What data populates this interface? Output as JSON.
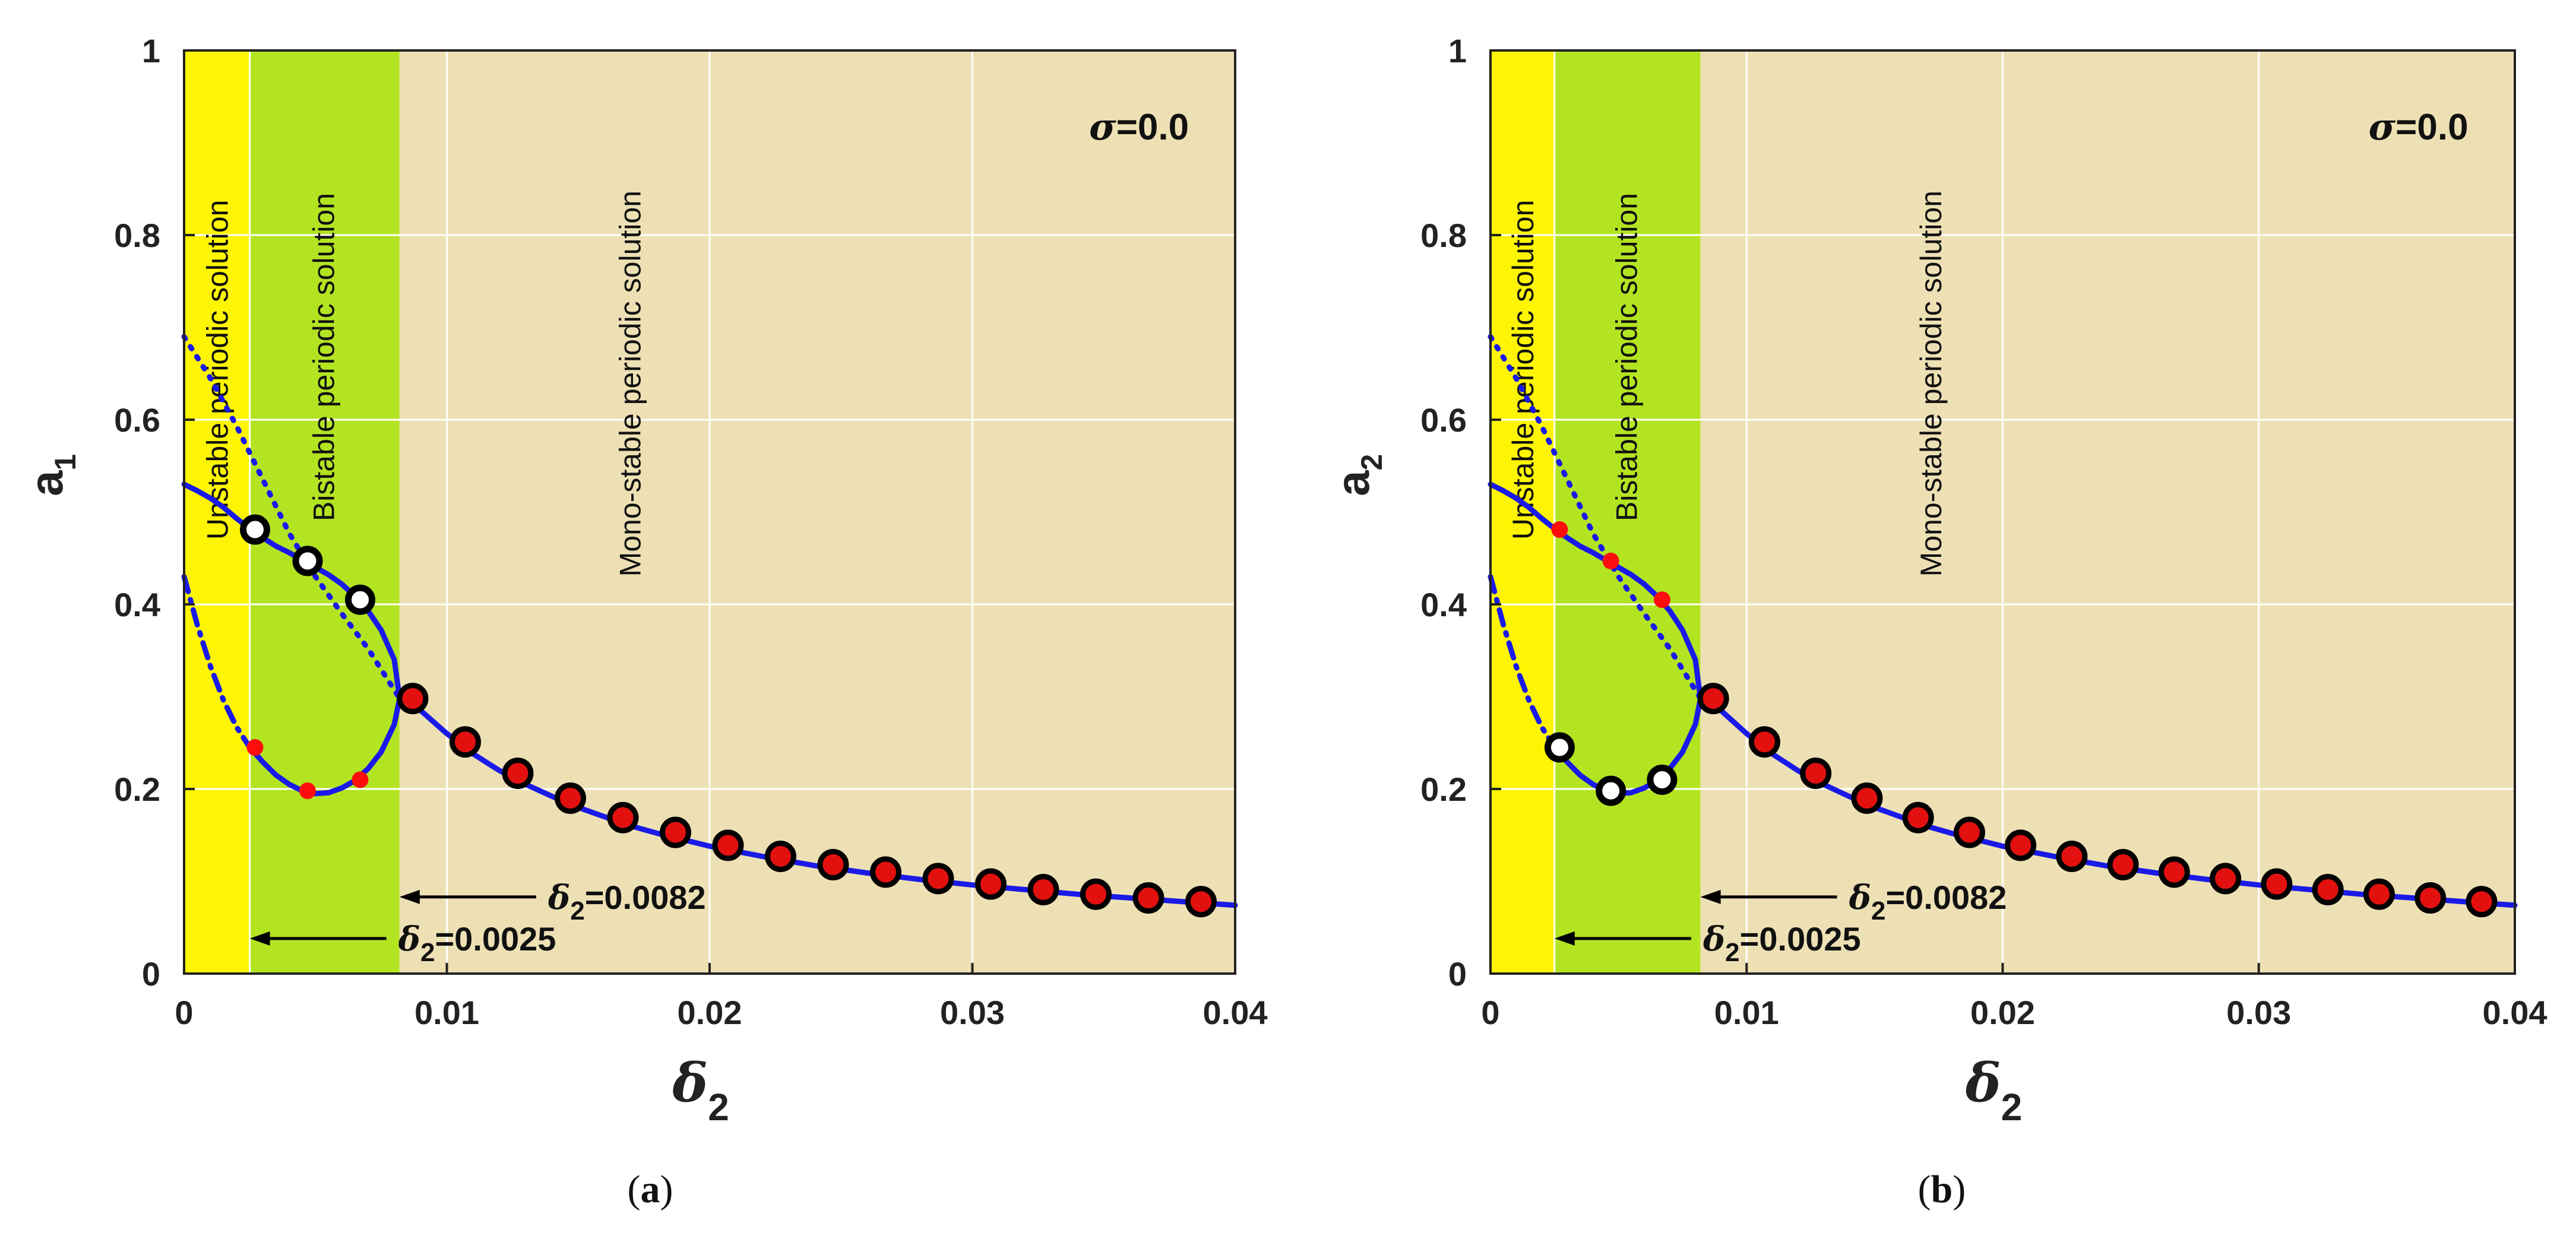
{
  "chart_data": [
    {
      "type": "line",
      "panel_label": "(a)",
      "ylabel": "a",
      "ylabel_sub": "1",
      "xlabel": "δ",
      "xlabel_sub": "2",
      "xlim": [
        0,
        0.04
      ],
      "ylim": [
        0,
        1
      ],
      "x_ticks": [
        "0",
        "0.01",
        "0.02",
        "0.03",
        "0.04"
      ],
      "y_ticks": [
        "0",
        "0.2",
        "0.4",
        "0.6",
        "0.8",
        "1"
      ],
      "grid": true,
      "sigma_text": "σ=0.0",
      "regions": [
        {
          "name": "Unstable periodic solution",
          "x_range": [
            0,
            0.0025
          ],
          "color": "#fdf503"
        },
        {
          "name": "Bistable periodic solution",
          "x_range": [
            0.0025,
            0.0082
          ],
          "color": "#b3e422"
        },
        {
          "name": "Mono-stable periodic solution",
          "x_range": [
            0.0082,
            0.04
          ],
          "color": "#ede0b4"
        }
      ],
      "annotations": [
        {
          "symbol": "δ",
          "sub": "2",
          "text": "=0.0082",
          "x": 0.0082,
          "y": 0.083
        },
        {
          "symbol": "δ",
          "sub": "2",
          "text": "=0.0025",
          "x": 0.0025,
          "y": 0.038
        }
      ],
      "series": [
        {
          "name": "stable upper branch",
          "style": "solid",
          "x": [
            0,
            0.0005,
            0.001,
            0.0015,
            0.002,
            0.0025,
            0.003,
            0.0035,
            0.004,
            0.0045,
            0.005,
            0.0055,
            0.006,
            0.0065,
            0.007,
            0.0075,
            0.008,
            0.0082
          ],
          "y": [
            0.53,
            0.523,
            0.515,
            0.505,
            0.493,
            0.482,
            0.472,
            0.463,
            0.456,
            0.448,
            0.44,
            0.432,
            0.422,
            0.409,
            0.393,
            0.372,
            0.34,
            0.298
          ]
        },
        {
          "name": "stable lower branch",
          "style": "solid",
          "x": [
            0.0025,
            0.003,
            0.0035,
            0.004,
            0.0045,
            0.005,
            0.0055,
            0.006,
            0.0065,
            0.007,
            0.0075,
            0.008,
            0.0082
          ],
          "y": [
            0.245,
            0.229,
            0.215,
            0.205,
            0.198,
            0.195,
            0.196,
            0.201,
            0.209,
            0.222,
            0.24,
            0.27,
            0.298
          ]
        },
        {
          "name": "unstable lower branch",
          "style": "dashdot",
          "x": [
            0,
            0.0005,
            0.001,
            0.0015,
            0.002,
            0.0025
          ],
          "y": [
            0.43,
            0.378,
            0.333,
            0.296,
            0.267,
            0.245
          ]
        },
        {
          "name": "unstable middle branch",
          "style": "dotted",
          "x": [
            0,
            0.001,
            0.002,
            0.003,
            0.004,
            0.005,
            0.006,
            0.007,
            0.0082
          ],
          "y": [
            0.69,
            0.645,
            0.593,
            0.535,
            0.477,
            0.43,
            0.39,
            0.352,
            0.298
          ]
        },
        {
          "name": "mono-stable branch",
          "style": "solid",
          "x": [
            0.0082,
            0.009,
            0.01,
            0.011,
            0.012,
            0.013,
            0.014,
            0.015,
            0.016,
            0.017,
            0.018,
            0.019,
            0.02,
            0.022,
            0.024,
            0.026,
            0.028,
            0.03,
            0.032,
            0.034,
            0.036,
            0.038,
            0.04
          ],
          "y": [
            0.298,
            0.285,
            0.26,
            0.238,
            0.22,
            0.205,
            0.192,
            0.18,
            0.17,
            0.16,
            0.152,
            0.145,
            0.138,
            0.127,
            0.117,
            0.109,
            0.102,
            0.096,
            0.091,
            0.086,
            0.082,
            0.078,
            0.074
          ]
        }
      ],
      "markers": {
        "large_red": {
          "x": [
            0.0087,
            0.0107,
            0.0127,
            0.0147,
            0.0167,
            0.0187,
            0.0207,
            0.0227,
            0.0247,
            0.0267,
            0.0287,
            0.0307,
            0.0327,
            0.0347,
            0.0367,
            0.0387
          ],
          "y": [
            0.298,
            0.251,
            0.217,
            0.19,
            0.169,
            0.153,
            0.139,
            0.127,
            0.118,
            0.11,
            0.103,
            0.097,
            0.091,
            0.086,
            0.082,
            0.078
          ]
        },
        "large_white": {
          "x": [
            0.0027,
            0.0047,
            0.0067
          ],
          "y": [
            0.481,
            0.447,
            0.405
          ]
        },
        "small_red": {
          "x": [
            0.0027,
            0.0047,
            0.0067
          ],
          "y": [
            0.245,
            0.198,
            0.21
          ]
        }
      }
    },
    {
      "type": "line",
      "panel_label": "(b)",
      "ylabel": "a",
      "ylabel_sub": "2",
      "xlabel": "δ",
      "xlabel_sub": "2",
      "xlim": [
        0,
        0.04
      ],
      "ylim": [
        0,
        1
      ],
      "x_ticks": [
        "0",
        "0.01",
        "0.02",
        "0.03",
        "0.04"
      ],
      "y_ticks": [
        "0",
        "0.2",
        "0.4",
        "0.6",
        "0.8",
        "1"
      ],
      "grid": true,
      "sigma_text": "σ=0.0",
      "regions": [
        {
          "name": "Unstable periodic solution",
          "x_range": [
            0,
            0.0025
          ],
          "color": "#fdf503"
        },
        {
          "name": "Bistable periodic solution",
          "x_range": [
            0.0025,
            0.0082
          ],
          "color": "#b3e422"
        },
        {
          "name": "Mono-stable periodic solution",
          "x_range": [
            0.0082,
            0.04
          ],
          "color": "#ede0b4"
        }
      ],
      "annotations": [
        {
          "symbol": "δ",
          "sub": "2",
          "text": "=0.0082",
          "x": 0.0082,
          "y": 0.083
        },
        {
          "symbol": "δ",
          "sub": "2",
          "text": "=0.0025",
          "x": 0.0025,
          "y": 0.038
        }
      ],
      "series": [
        {
          "name": "upper branch",
          "style": "solid",
          "x": [
            0,
            0.0005,
            0.001,
            0.0015,
            0.002,
            0.0025,
            0.003,
            0.0035,
            0.004,
            0.0045,
            0.005,
            0.0055,
            0.006,
            0.0065,
            0.007,
            0.0075,
            0.008,
            0.0082
          ],
          "y": [
            0.53,
            0.523,
            0.515,
            0.505,
            0.493,
            0.482,
            0.472,
            0.463,
            0.456,
            0.448,
            0.44,
            0.432,
            0.422,
            0.409,
            0.393,
            0.372,
            0.34,
            0.298
          ]
        },
        {
          "name": "lower branch",
          "style": "solid",
          "x": [
            0.0025,
            0.003,
            0.0035,
            0.004,
            0.0045,
            0.005,
            0.0055,
            0.006,
            0.0065,
            0.007,
            0.0075,
            0.008,
            0.0082
          ],
          "y": [
            0.245,
            0.229,
            0.215,
            0.205,
            0.198,
            0.195,
            0.196,
            0.201,
            0.209,
            0.222,
            0.24,
            0.27,
            0.298
          ]
        },
        {
          "name": "unstable lower branch",
          "style": "dashdot",
          "x": [
            0,
            0.0005,
            0.001,
            0.0015,
            0.002,
            0.0025
          ],
          "y": [
            0.43,
            0.378,
            0.333,
            0.296,
            0.267,
            0.245
          ]
        },
        {
          "name": "unstable middle branch",
          "style": "dotted",
          "x": [
            0,
            0.001,
            0.002,
            0.003,
            0.004,
            0.005,
            0.006,
            0.007,
            0.0082
          ],
          "y": [
            0.69,
            0.645,
            0.593,
            0.535,
            0.477,
            0.43,
            0.39,
            0.352,
            0.298
          ]
        },
        {
          "name": "mono-stable branch",
          "style": "solid",
          "x": [
            0.0082,
            0.009,
            0.01,
            0.011,
            0.012,
            0.013,
            0.014,
            0.015,
            0.016,
            0.017,
            0.018,
            0.019,
            0.02,
            0.022,
            0.024,
            0.026,
            0.028,
            0.03,
            0.032,
            0.034,
            0.036,
            0.038,
            0.04
          ],
          "y": [
            0.298,
            0.285,
            0.26,
            0.238,
            0.22,
            0.205,
            0.192,
            0.18,
            0.17,
            0.16,
            0.152,
            0.145,
            0.138,
            0.127,
            0.117,
            0.109,
            0.102,
            0.096,
            0.091,
            0.086,
            0.082,
            0.078,
            0.074
          ]
        }
      ],
      "markers": {
        "large_red": {
          "x": [
            0.0087,
            0.0107,
            0.0127,
            0.0147,
            0.0167,
            0.0187,
            0.0207,
            0.0227,
            0.0247,
            0.0267,
            0.0287,
            0.0307,
            0.0327,
            0.0347,
            0.0367,
            0.0387
          ],
          "y": [
            0.298,
            0.251,
            0.217,
            0.19,
            0.169,
            0.153,
            0.139,
            0.127,
            0.118,
            0.11,
            0.103,
            0.097,
            0.091,
            0.086,
            0.082,
            0.078
          ]
        },
        "large_white": {
          "x": [
            0.0027,
            0.0047,
            0.0067
          ],
          "y": [
            0.245,
            0.198,
            0.21
          ]
        },
        "small_red": {
          "x": [
            0.0027,
            0.0047,
            0.0067
          ],
          "y": [
            0.481,
            0.447,
            0.405
          ]
        }
      }
    }
  ]
}
